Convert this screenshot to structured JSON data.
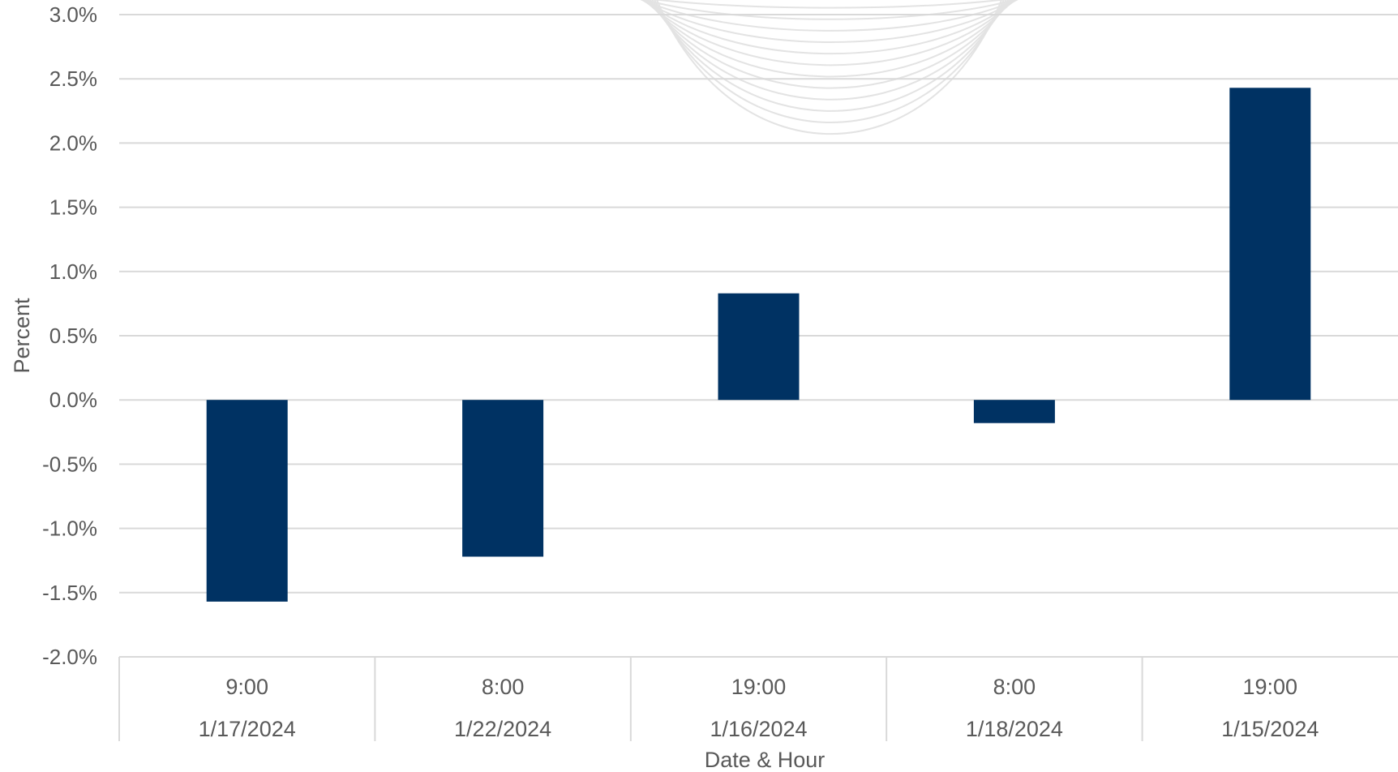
{
  "chart_data": {
    "type": "bar",
    "title": "",
    "xlabel": "Date & Hour",
    "ylabel": "Percent",
    "categories": [
      {
        "hour": "9:00",
        "date": "1/17/2024"
      },
      {
        "hour": "8:00",
        "date": "1/22/2024"
      },
      {
        "hour": "19:00",
        "date": "1/16/2024"
      },
      {
        "hour": "8:00",
        "date": "1/18/2024"
      },
      {
        "hour": "19:00",
        "date": "1/15/2024"
      }
    ],
    "values": [
      -1.57,
      -1.22,
      0.83,
      -0.18,
      2.43
    ],
    "ylim": [
      -2.0,
      3.0
    ],
    "y_ticks": [
      3.0,
      2.5,
      2.0,
      1.5,
      1.0,
      0.5,
      0.0,
      -0.5,
      -1.0,
      -1.5,
      -2.0
    ],
    "y_tick_labels": [
      "3.0%",
      "2.5%",
      "2.0%",
      "1.5%",
      "1.0%",
      "0.5%",
      "0.0%",
      "-0.5%",
      "-1.0%",
      "-1.5%",
      "-2.0%"
    ],
    "grid": true,
    "legend": "none",
    "colors": {
      "bar": "#003263",
      "grid": "#d9d9d9",
      "text": "#595959",
      "watermark": "#e3e3e3"
    }
  }
}
